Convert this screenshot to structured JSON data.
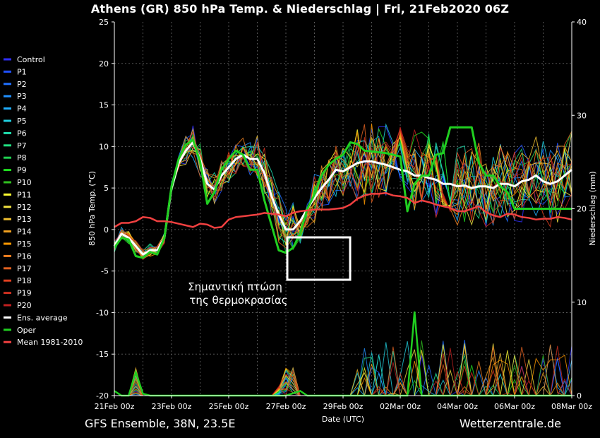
{
  "header": {
    "title": "Athens  (GR)  850 hPa Temp. & Niederschlag | Fri, 21Feb2020 06Z"
  },
  "footer": {
    "left": "GFS Ensemble, 38N, 23.5E",
    "right": "Wetterzentrale.de"
  },
  "chart_data": {
    "type": "line",
    "xlabel": "Date (UTC)",
    "ylabel": "850 hPa Temp. (°C)",
    "y2label": "Niederschlag (mm)",
    "ylim": [
      -20,
      25
    ],
    "y2lim": [
      0,
      40
    ],
    "yticks": [
      25,
      20,
      15,
      10,
      5,
      0,
      -5,
      -10,
      -15,
      -20
    ],
    "y2ticks": [
      40,
      30,
      20,
      10,
      0
    ],
    "x_tick_labels": [
      "21Feb 00z",
      "23Feb 00z",
      "25Feb 00z",
      "27Feb 00z",
      "29Feb 00z",
      "02Mar 00z",
      "04Mar 00z",
      "06Mar 00z",
      "08Mar 00z"
    ],
    "x_range_hours": [
      0,
      384
    ],
    "grid": true,
    "legend_position": "left",
    "legend": [
      {
        "name": "Control",
        "color": "#3030ff"
      },
      {
        "name": "P1",
        "color": "#2050ff"
      },
      {
        "name": "P2",
        "color": "#2070ff"
      },
      {
        "name": "P3",
        "color": "#2090ff"
      },
      {
        "name": "P4",
        "color": "#20b0ff"
      },
      {
        "name": "P5",
        "color": "#20d0e0"
      },
      {
        "name": "P6",
        "color": "#20e0b0"
      },
      {
        "name": "P7",
        "color": "#20e080"
      },
      {
        "name": "P8",
        "color": "#20d050"
      },
      {
        "name": "P9",
        "color": "#20e020"
      },
      {
        "name": "P10",
        "color": "#30c020"
      },
      {
        "name": "P11",
        "color": "#ffff30"
      },
      {
        "name": "P12",
        "color": "#f0e040"
      },
      {
        "name": "P13",
        "color": "#f0c030"
      },
      {
        "name": "P14",
        "color": "#f0a020"
      },
      {
        "name": "P15",
        "color": "#ff9900"
      },
      {
        "name": "P16",
        "color": "#f08020"
      },
      {
        "name": "P17",
        "color": "#e06020"
      },
      {
        "name": "P18",
        "color": "#e04020"
      },
      {
        "name": "P19",
        "color": "#d03020"
      },
      {
        "name": "P20",
        "color": "#c02020"
      },
      {
        "name": "Ens. average",
        "color": "#ffffff"
      },
      {
        "name": "Oper",
        "color": "#20d020"
      },
      {
        "name": "Mean 1981-2010",
        "color": "#f04040"
      }
    ],
    "series": [
      {
        "name": "Ens. average",
        "color": "#ffffff",
        "x": [
          0,
          6,
          12,
          18,
          24,
          30,
          36,
          42,
          48,
          54,
          60,
          66,
          72,
          78,
          84,
          90,
          96,
          102,
          108,
          114,
          120,
          126,
          132,
          138,
          144,
          150,
          156,
          162,
          168,
          174,
          180,
          186,
          192,
          198,
          204,
          210,
          216,
          222,
          228,
          234,
          240,
          246,
          252,
          258,
          264,
          270,
          276,
          282,
          288,
          294,
          300,
          306,
          312,
          318,
          324,
          330,
          336,
          342,
          348,
          354,
          360,
          366,
          372,
          378,
          384
        ],
        "y": [
          -2,
          -0.5,
          -1,
          -2,
          -3,
          -2.5,
          -2.5,
          -1,
          5,
          8,
          9.5,
          10.5,
          8.5,
          5.5,
          4.8,
          6.5,
          7.5,
          8.5,
          9,
          8.5,
          8.5,
          6.8,
          4,
          1.8,
          0,
          0,
          1,
          2.5,
          3.8,
          5,
          6,
          7.2,
          7,
          7.5,
          8,
          8.2,
          8.2,
          8,
          7.8,
          7.5,
          7.2,
          7,
          6.5,
          6.5,
          6.2,
          6,
          5.5,
          5.5,
          5.2,
          5.3,
          5,
          5.2,
          5.2,
          5,
          5.5,
          5.5,
          5.2,
          5.8,
          6,
          6.5,
          5.8,
          5.5,
          5.8,
          6.5,
          7.2
        ]
      },
      {
        "name": "Oper",
        "color": "#20d020",
        "x": [
          0,
          6,
          12,
          18,
          24,
          30,
          36,
          42,
          48,
          54,
          60,
          66,
          72,
          78,
          84,
          90,
          96,
          102,
          108,
          114,
          120,
          126,
          132,
          138,
          144,
          150,
          156,
          162,
          168,
          174,
          180,
          186,
          192,
          198,
          204,
          210,
          216,
          222,
          228,
          234,
          240,
          246,
          252,
          258,
          264,
          270,
          276,
          282,
          288,
          294,
          300,
          306,
          312,
          318,
          324,
          330,
          336,
          342,
          348,
          354,
          360,
          366,
          372,
          378,
          384
        ],
        "y": [
          -2.2,
          -1,
          -1.2,
          -3.2,
          -3.4,
          -2.7,
          -3,
          -1,
          5.2,
          8.5,
          10.2,
          10.8,
          8.2,
          3.1,
          4.5,
          7.2,
          8.5,
          9.5,
          9,
          7.2,
          7.2,
          3.5,
          0.5,
          -2.5,
          -2.8,
          -2.2,
          -0.5,
          2.5,
          4.2,
          6.5,
          7.8,
          8.5,
          9,
          10.5,
          10.3,
          9.5,
          9.4,
          9.3,
          9.2,
          9.0,
          8.8,
          2.2,
          5.5,
          6.5,
          6.5,
          9.0,
          9.2,
          12.3,
          12.3,
          12.3,
          12.3,
          8.0,
          6.5,
          6.5,
          5.2,
          4.5,
          2.5,
          2.5,
          2.5,
          2.5,
          2.5,
          2.5,
          2.5,
          2.5,
          2.5
        ]
      },
      {
        "name": "Mean 1981-2010",
        "color": "#f04040",
        "x": [
          0,
          6,
          12,
          18,
          24,
          30,
          36,
          42,
          48,
          54,
          60,
          66,
          72,
          78,
          84,
          90,
          96,
          102,
          108,
          114,
          120,
          126,
          132,
          138,
          144,
          150,
          156,
          162,
          168,
          174,
          180,
          186,
          192,
          198,
          204,
          210,
          216,
          222,
          228,
          234,
          240,
          246,
          252,
          258,
          264,
          270,
          276,
          282,
          288,
          294,
          300,
          306,
          312,
          318,
          324,
          330,
          336,
          342,
          348,
          354,
          360,
          366,
          372,
          378,
          384
        ],
        "y": [
          0.3,
          0.8,
          0.8,
          1,
          1.5,
          1.4,
          1,
          1,
          0.9,
          0.7,
          0.5,
          0.3,
          0.7,
          0.6,
          0.2,
          0.3,
          1.2,
          1.5,
          1.6,
          1.7,
          1.8,
          2,
          1.9,
          1.8,
          1.6,
          2,
          2.2,
          2.3,
          2.4,
          2.4,
          2.4,
          2.5,
          2.6,
          3,
          3.7,
          4.1,
          4.3,
          4.3,
          4.4,
          4.1,
          4,
          3.8,
          3.2,
          3.5,
          3.3,
          3,
          2.8,
          2.6,
          2.2,
          2.2,
          2.5,
          2.8,
          2.1,
          1.7,
          1.5,
          1.9,
          1.8,
          1.5,
          1.4,
          1.2,
          1.3,
          1.3,
          1.5,
          1.4,
          1.2
        ]
      }
    ],
    "precip_series": [
      {
        "name": "Oper",
        "color": "#20d020",
        "x": [
          0,
          6,
          12,
          18,
          24,
          30,
          36,
          42,
          48,
          144,
          156,
          162,
          168,
          246,
          252,
          258,
          264,
          336,
          342,
          348,
          354,
          384
        ],
        "y": [
          0.5,
          0,
          0,
          2.5,
          0.2,
          0,
          0,
          0,
          0,
          0,
          0.5,
          0,
          0,
          0,
          9,
          0,
          0,
          0,
          0,
          0,
          0,
          0
        ]
      }
    ],
    "annotation": "Σημαντική πτώση\nτης θερμοκρασίας"
  }
}
